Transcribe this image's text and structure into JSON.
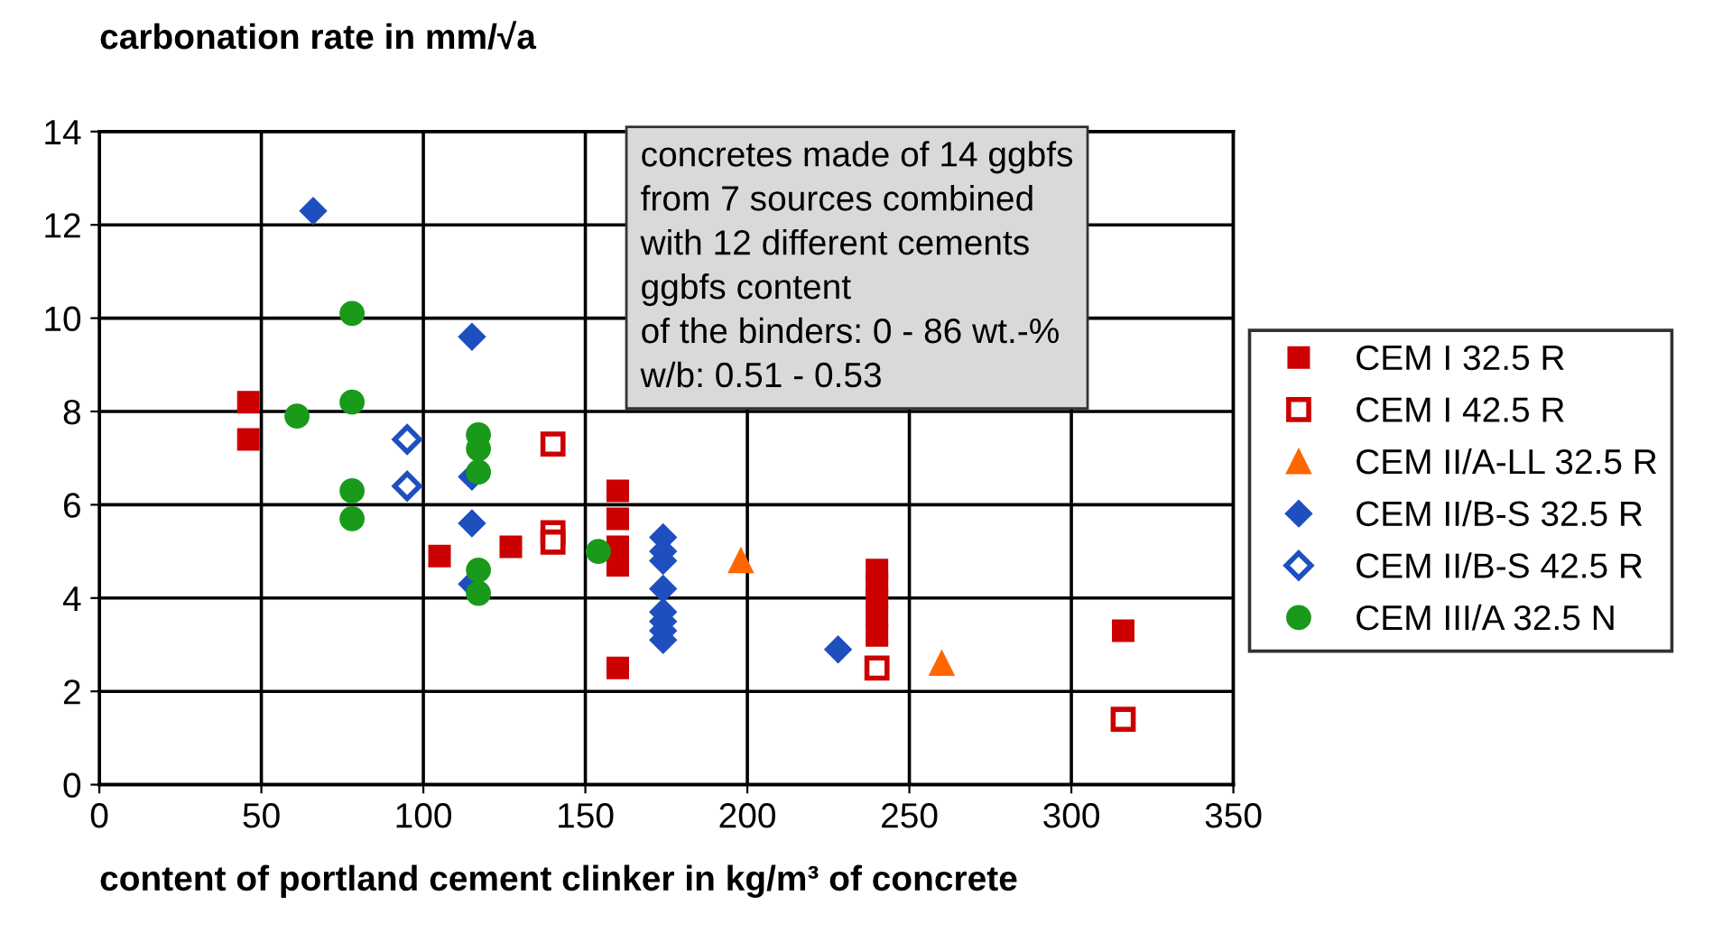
{
  "chart_data": {
    "type": "scatter",
    "xlabel": "content of portland cement clinker in kg/m³ of concrete",
    "ylabel": "carbonation rate in mm/√a",
    "annotations": [
      "concretes made of 14 ggbfs\nfrom 7 sources combined\nwith 12 different cements\nggbfs content\nof the binders: 0 - 86 wt.-%\nw/b: 0.51 - 0.53"
    ],
    "xlim": [
      0,
      350
    ],
    "xticks": [
      0,
      50,
      100,
      150,
      200,
      250,
      300,
      350
    ],
    "ylim": [
      0,
      14
    ],
    "yticks": [
      0,
      2,
      4,
      6,
      8,
      10,
      12,
      14
    ],
    "grid": true,
    "legend": "right",
    "series": [
      {
        "name": "CEM I 32.5 R",
        "color": "#cc0000",
        "marker": "square",
        "x": [
          46,
          46,
          105,
          127,
          160,
          160,
          160,
          160,
          160,
          240,
          240,
          240,
          240,
          240,
          316
        ],
        "values": [
          8.2,
          7.4,
          4.9,
          5.1,
          6.3,
          5.7,
          5.1,
          4.7,
          2.5,
          4.6,
          4.3,
          4.0,
          3.6,
          3.2,
          3.3
        ]
      },
      {
        "name": "CEM I 42.5 R",
        "color": "#cc0000",
        "marker": "square",
        "x": [
          140,
          140,
          140,
          240,
          316
        ],
        "values": [
          7.3,
          5.4,
          5.2,
          2.5,
          1.4
        ]
      },
      {
        "name": "CEM II/A-LL 32.5 R",
        "color": "#ff6600",
        "marker": "triangle",
        "x": [
          198,
          260
        ],
        "values": [
          4.8,
          2.6
        ]
      },
      {
        "name": "CEM II/B-S 32.5 R",
        "color": "#1f4fbf",
        "marker": "diamond",
        "x": [
          66,
          115,
          115,
          115,
          115,
          174,
          174,
          174,
          174,
          174,
          174,
          174,
          174,
          228
        ],
        "values": [
          12.3,
          9.6,
          6.6,
          5.6,
          4.3,
          5.3,
          5.0,
          4.8,
          4.2,
          3.7,
          3.5,
          3.3,
          3.1,
          2.9
        ]
      },
      {
        "name": "CEM II/B-S 42.5 R",
        "color": "#1f4fbf",
        "marker": "diamond",
        "x": [
          95,
          95
        ],
        "values": [
          7.4,
          6.4
        ]
      },
      {
        "name": "CEM III/A 32.5 N",
        "color": "#1a9a1a",
        "marker": "circle",
        "x": [
          78,
          78,
          61,
          78,
          78,
          117,
          117,
          117,
          117,
          117,
          154
        ],
        "values": [
          10.1,
          8.2,
          7.9,
          6.3,
          5.7,
          7.5,
          7.2,
          6.7,
          4.6,
          4.1,
          5.0
        ]
      }
    ]
  }
}
